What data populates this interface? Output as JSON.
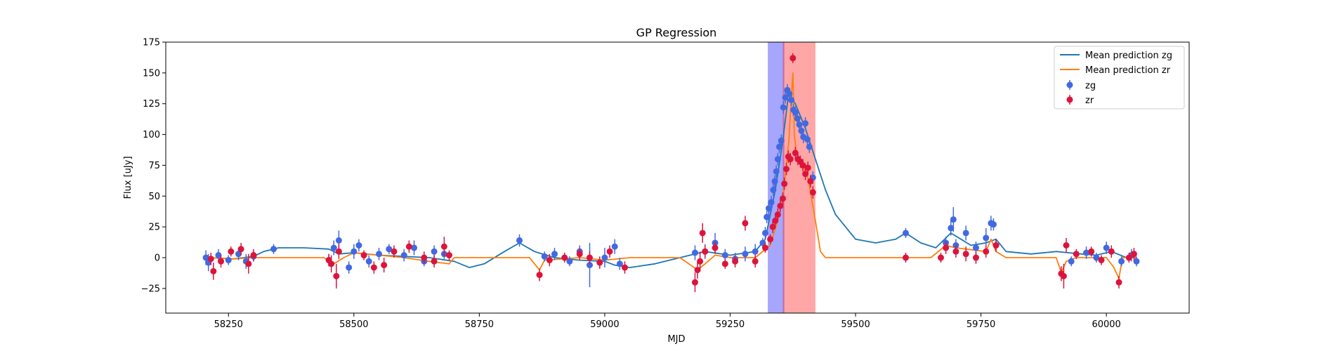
{
  "chart_data": {
    "type": "scatter",
    "title": "GP Regression",
    "xlabel": "MJD",
    "ylabel": "Flux [uJy]",
    "xlim": [
      58125,
      60165
    ],
    "ylim": [
      -45,
      175
    ],
    "xticks": [
      58250,
      58500,
      58750,
      59000,
      59250,
      59500,
      59750,
      60000
    ],
    "yticks": [
      -25,
      0,
      25,
      50,
      75,
      100,
      125,
      150,
      175
    ],
    "legend_placement": "top-right",
    "colors": {
      "zg_line": "#1f77b4",
      "zr_line": "#ff7f0e",
      "zg_points": "#4169e1",
      "zr_points": "#dc143c",
      "band_zg": "#0000ff",
      "band_zr": "#ff0000"
    },
    "shaded_regions": [
      {
        "band": "zg",
        "x": [
          59325,
          59358
        ],
        "color": "#0000ff",
        "opacity": 0.35
      },
      {
        "band": "zr",
        "x": [
          59355,
          59420
        ],
        "color": "#ff0000",
        "opacity": 0.35
      }
    ],
    "series": [
      {
        "name": "Mean prediction zg",
        "kind": "line",
        "color": "#1f77b4",
        "points": [
          [
            58210,
            0
          ],
          [
            58260,
            -1
          ],
          [
            58300,
            1
          ],
          [
            58320,
            5
          ],
          [
            58350,
            8
          ],
          [
            58400,
            8
          ],
          [
            58450,
            7
          ],
          [
            58470,
            3
          ],
          [
            58500,
            4
          ],
          [
            58550,
            2
          ],
          [
            58600,
            1
          ],
          [
            58650,
            0
          ],
          [
            58700,
            -3
          ],
          [
            58730,
            -8
          ],
          [
            58760,
            -5
          ],
          [
            58800,
            5
          ],
          [
            58830,
            12
          ],
          [
            58860,
            5
          ],
          [
            58900,
            0
          ],
          [
            58950,
            -2
          ],
          [
            59000,
            -3
          ],
          [
            59020,
            -6
          ],
          [
            59050,
            -8
          ],
          [
            59100,
            -5
          ],
          [
            59150,
            0
          ],
          [
            59200,
            5
          ],
          [
            59250,
            2
          ],
          [
            59300,
            5
          ],
          [
            59320,
            15
          ],
          [
            59340,
            55
          ],
          [
            59355,
            95
          ],
          [
            59365,
            128
          ],
          [
            59372,
            130
          ],
          [
            59380,
            125
          ],
          [
            59390,
            115
          ],
          [
            59400,
            105
          ],
          [
            59420,
            80
          ],
          [
            59440,
            55
          ],
          [
            59460,
            35
          ],
          [
            59500,
            15
          ],
          [
            59540,
            12
          ],
          [
            59580,
            15
          ],
          [
            59600,
            20
          ],
          [
            59630,
            12
          ],
          [
            59660,
            8
          ],
          [
            59690,
            20
          ],
          [
            59710,
            15
          ],
          [
            59730,
            10
          ],
          [
            59760,
            12
          ],
          [
            59780,
            15
          ],
          [
            59800,
            5
          ],
          [
            59850,
            3
          ],
          [
            59900,
            5
          ],
          [
            59950,
            3
          ],
          [
            59980,
            2
          ],
          [
            60010,
            5
          ],
          [
            60040,
            0
          ],
          [
            60060,
            0
          ]
        ]
      },
      {
        "name": "Mean prediction zr",
        "kind": "line",
        "color": "#ff7f0e",
        "points": [
          [
            58210,
            0
          ],
          [
            58260,
            -1
          ],
          [
            58300,
            0
          ],
          [
            58350,
            0
          ],
          [
            58440,
            0
          ],
          [
            58460,
            -5
          ],
          [
            58480,
            0
          ],
          [
            58500,
            4
          ],
          [
            58550,
            2
          ],
          [
            58600,
            0
          ],
          [
            58650,
            -3
          ],
          [
            58690,
            -5
          ],
          [
            58700,
            0
          ],
          [
            58850,
            0
          ],
          [
            58870,
            -10
          ],
          [
            58880,
            -2
          ],
          [
            58950,
            0
          ],
          [
            59000,
            -2
          ],
          [
            59050,
            0
          ],
          [
            59150,
            0
          ],
          [
            59185,
            -10
          ],
          [
            59200,
            -5
          ],
          [
            59220,
            2
          ],
          [
            59250,
            0
          ],
          [
            59300,
            0
          ],
          [
            59330,
            10
          ],
          [
            59345,
            30
          ],
          [
            59355,
            50
          ],
          [
            59362,
            75
          ],
          [
            59367,
            95
          ],
          [
            59372,
            130
          ],
          [
            59375,
            150
          ],
          [
            59378,
            100
          ],
          [
            59382,
            85
          ],
          [
            59390,
            80
          ],
          [
            59405,
            65
          ],
          [
            59420,
            30
          ],
          [
            59430,
            5
          ],
          [
            59440,
            0
          ],
          [
            59600,
            0
          ],
          [
            59650,
            0
          ],
          [
            59680,
            10
          ],
          [
            59700,
            8
          ],
          [
            59760,
            5
          ],
          [
            59770,
            15
          ],
          [
            59780,
            5
          ],
          [
            59800,
            0
          ],
          [
            59900,
            0
          ],
          [
            59910,
            -12
          ],
          [
            59920,
            -3
          ],
          [
            59940,
            0
          ],
          [
            60000,
            0
          ],
          [
            60015,
            -8
          ],
          [
            60025,
            -17
          ],
          [
            60032,
            0
          ],
          [
            60060,
            0
          ]
        ]
      },
      {
        "name": "zg",
        "kind": "errorbar",
        "color": "#4169e1",
        "points": [
          [
            58205,
            0,
            6
          ],
          [
            58210,
            -4,
            7
          ],
          [
            58230,
            2,
            5
          ],
          [
            58250,
            -2,
            4
          ],
          [
            58270,
            3,
            5
          ],
          [
            58285,
            -3,
            6
          ],
          [
            58300,
            1,
            4
          ],
          [
            58340,
            7,
            4
          ],
          [
            58450,
            -2,
            5
          ],
          [
            58460,
            8,
            6
          ],
          [
            58470,
            14,
            8
          ],
          [
            58490,
            -8,
            5
          ],
          [
            58500,
            5,
            6
          ],
          [
            58510,
            10,
            5
          ],
          [
            58530,
            -3,
            5
          ],
          [
            58550,
            3,
            5
          ],
          [
            58570,
            7,
            4
          ],
          [
            58600,
            2,
            5
          ],
          [
            58620,
            8,
            6
          ],
          [
            58640,
            -3,
            4
          ],
          [
            58660,
            5,
            5
          ],
          [
            58680,
            3,
            4
          ],
          [
            58830,
            14,
            5
          ],
          [
            58880,
            1,
            4
          ],
          [
            58900,
            3,
            5
          ],
          [
            58930,
            -3,
            4
          ],
          [
            58950,
            5,
            5
          ],
          [
            58970,
            -6,
            18
          ],
          [
            59000,
            0,
            8
          ],
          [
            59020,
            9,
            6
          ],
          [
            59030,
            -5,
            5
          ],
          [
            59180,
            4,
            6
          ],
          [
            59200,
            5,
            6
          ],
          [
            59220,
            12,
            8
          ],
          [
            59240,
            2,
            5
          ],
          [
            59260,
            -1,
            5
          ],
          [
            59280,
            3,
            6
          ],
          [
            59300,
            5,
            6
          ],
          [
            59315,
            12,
            4
          ],
          [
            59320,
            20,
            5
          ],
          [
            59323,
            33,
            5
          ],
          [
            59327,
            40,
            5
          ],
          [
            59332,
            45,
            5
          ],
          [
            59336,
            55,
            5
          ],
          [
            59339,
            62,
            5
          ],
          [
            59342,
            70,
            5
          ],
          [
            59345,
            80,
            5
          ],
          [
            59348,
            90,
            5
          ],
          [
            59352,
            95,
            5
          ],
          [
            59356,
            122,
            5
          ],
          [
            59360,
            130,
            5
          ],
          [
            59364,
            136,
            5
          ],
          [
            59368,
            133,
            5
          ],
          [
            59372,
            128,
            5
          ],
          [
            59376,
            120,
            5
          ],
          [
            59380,
            118,
            5
          ],
          [
            59384,
            113,
            5
          ],
          [
            59388,
            108,
            5
          ],
          [
            59392,
            103,
            5
          ],
          [
            59396,
            98,
            5
          ],
          [
            59400,
            109,
            5
          ],
          [
            59404,
            96,
            5
          ],
          [
            59408,
            90,
            5
          ],
          [
            59415,
            65,
            5
          ],
          [
            59600,
            20,
            4
          ],
          [
            59680,
            12,
            5
          ],
          [
            59690,
            24,
            6
          ],
          [
            59695,
            31,
            10
          ],
          [
            59700,
            10,
            5
          ],
          [
            59720,
            20,
            6
          ],
          [
            59740,
            8,
            5
          ],
          [
            59760,
            16,
            8
          ],
          [
            59770,
            28,
            6
          ],
          [
            59775,
            27,
            5
          ],
          [
            59780,
            10,
            5
          ],
          [
            59930,
            -3,
            4
          ],
          [
            59960,
            4,
            5
          ],
          [
            59980,
            0,
            4
          ],
          [
            60000,
            8,
            5
          ],
          [
            60030,
            -3,
            4
          ],
          [
            60050,
            2,
            5
          ],
          [
            60060,
            -3,
            4
          ]
        ]
      },
      {
        "name": "zr",
        "kind": "errorbar",
        "color": "#dc143c",
        "points": [
          [
            58215,
            -1,
            5
          ],
          [
            58220,
            -11,
            7
          ],
          [
            58235,
            -3,
            5
          ],
          [
            58255,
            5,
            4
          ],
          [
            58275,
            7,
            5
          ],
          [
            58290,
            -5,
            8
          ],
          [
            58300,
            2,
            5
          ],
          [
            58450,
            -2,
            5
          ],
          [
            58455,
            -5,
            7
          ],
          [
            58465,
            -15,
            10
          ],
          [
            58470,
            5,
            6
          ],
          [
            58520,
            2,
            4
          ],
          [
            58540,
            -8,
            5
          ],
          [
            58560,
            -6,
            6
          ],
          [
            58580,
            5,
            5
          ],
          [
            58610,
            9,
            5
          ],
          [
            58640,
            0,
            5
          ],
          [
            58660,
            -3,
            5
          ],
          [
            58680,
            9,
            8
          ],
          [
            58690,
            2,
            4
          ],
          [
            58870,
            -14,
            5
          ],
          [
            58890,
            -2,
            5
          ],
          [
            58920,
            0,
            4
          ],
          [
            58950,
            3,
            5
          ],
          [
            58970,
            0,
            5
          ],
          [
            58990,
            -4,
            5
          ],
          [
            59010,
            5,
            5
          ],
          [
            59040,
            -8,
            5
          ],
          [
            59180,
            -20,
            8
          ],
          [
            59185,
            -10,
            7
          ],
          [
            59190,
            -3,
            8
          ],
          [
            59195,
            20,
            8
          ],
          [
            59200,
            5,
            5
          ],
          [
            59220,
            8,
            5
          ],
          [
            59240,
            -5,
            4
          ],
          [
            59260,
            -3,
            5
          ],
          [
            59280,
            28,
            6
          ],
          [
            59300,
            -3,
            5
          ],
          [
            59320,
            8,
            4
          ],
          [
            59330,
            15,
            4
          ],
          [
            59335,
            25,
            5
          ],
          [
            59340,
            30,
            5
          ],
          [
            59345,
            35,
            5
          ],
          [
            59350,
            42,
            5
          ],
          [
            59355,
            48,
            5
          ],
          [
            59358,
            60,
            5
          ],
          [
            59362,
            72,
            5
          ],
          [
            59366,
            82,
            5
          ],
          [
            59370,
            80,
            5
          ],
          [
            59375,
            162,
            4
          ],
          [
            59380,
            85,
            5
          ],
          [
            59385,
            80,
            5
          ],
          [
            59390,
            78,
            5
          ],
          [
            59395,
            75,
            5
          ],
          [
            59400,
            68,
            5
          ],
          [
            59405,
            73,
            5
          ],
          [
            59410,
            62,
            5
          ],
          [
            59415,
            53,
            5
          ],
          [
            59600,
            0,
            4
          ],
          [
            59670,
            0,
            4
          ],
          [
            59680,
            8,
            5
          ],
          [
            59700,
            5,
            5
          ],
          [
            59720,
            3,
            6
          ],
          [
            59740,
            0,
            5
          ],
          [
            59760,
            5,
            5
          ],
          [
            59780,
            10,
            5
          ],
          [
            59910,
            -13,
            6
          ],
          [
            59915,
            -15,
            10
          ],
          [
            59920,
            10,
            6
          ],
          [
            59940,
            3,
            4
          ],
          [
            59970,
            5,
            4
          ],
          [
            59990,
            -2,
            4
          ],
          [
            60010,
            5,
            5
          ],
          [
            60025,
            -20,
            5
          ],
          [
            60045,
            0,
            4
          ],
          [
            60055,
            3,
            5
          ]
        ]
      }
    ]
  }
}
